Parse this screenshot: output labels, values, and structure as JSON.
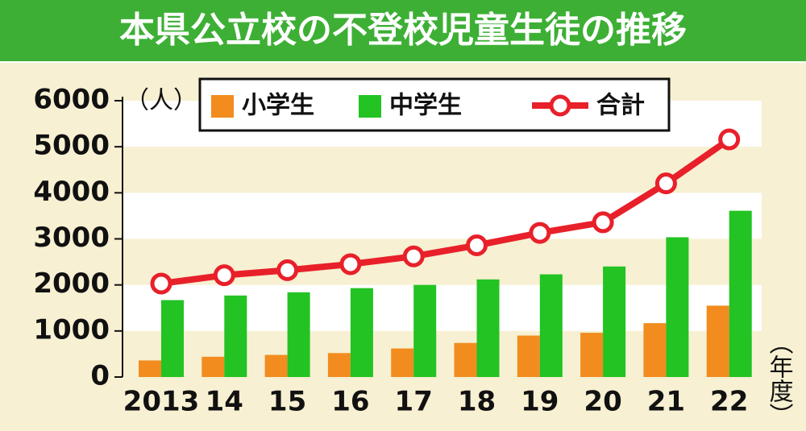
{
  "chart_data": {
    "type": "bar-line",
    "title": "本県公立校の不登校児童生徒の推移",
    "y_unit": "（人）",
    "x_unit": "（年度）",
    "categories": [
      "2013",
      "14",
      "15",
      "16",
      "17",
      "18",
      "19",
      "20",
      "21",
      "22"
    ],
    "series": [
      {
        "name": "小学生",
        "type": "bar",
        "color": "#f28c1e",
        "values": [
          360,
          440,
          480,
          520,
          620,
          740,
          900,
          960,
          1170,
          1550
        ]
      },
      {
        "name": "中学生",
        "type": "bar",
        "color": "#22c322",
        "values": [
          1670,
          1770,
          1840,
          1930,
          2000,
          2120,
          2230,
          2400,
          3035,
          3610
        ]
      },
      {
        "name": "合計",
        "type": "line",
        "color": "#e8202a",
        "values": [
          2030,
          2210,
          2320,
          2450,
          2620,
          2860,
          3130,
          3360,
          4205,
          5160
        ]
      }
    ],
    "ylim": [
      0,
      6000
    ],
    "yticks": [
      0,
      1000,
      2000,
      3000,
      4000,
      5000,
      6000
    ],
    "stripes": true
  }
}
